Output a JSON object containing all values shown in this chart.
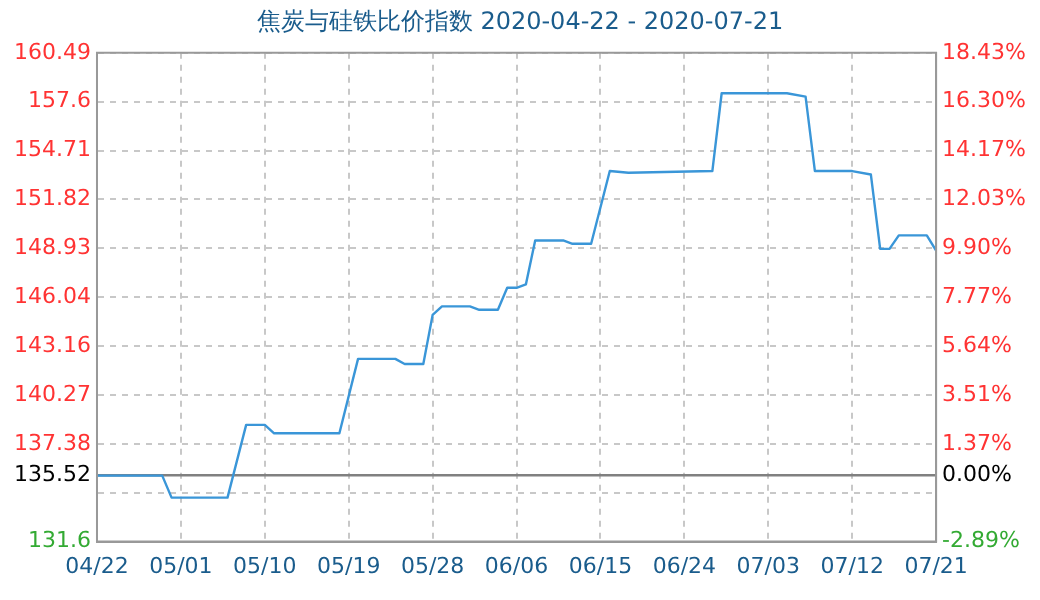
{
  "chart_data": {
    "type": "line",
    "title": "焦炭与硅铁比价指数 2020-04-22 - 2020-07-21",
    "x": [
      "2020-04-22",
      "2020-04-29",
      "2020-04-30",
      "2020-05-06",
      "2020-05-08",
      "2020-05-10",
      "2020-05-11",
      "2020-05-18",
      "2020-05-20",
      "2020-05-24",
      "2020-05-25",
      "2020-05-27",
      "2020-05-28",
      "2020-05-29",
      "2020-06-01",
      "2020-06-02",
      "2020-06-04",
      "2020-06-05",
      "2020-06-06",
      "2020-06-07",
      "2020-06-08",
      "2020-06-11",
      "2020-06-12",
      "2020-06-14",
      "2020-06-16",
      "2020-06-18",
      "2020-06-27",
      "2020-06-28",
      "2020-07-05",
      "2020-07-07",
      "2020-07-08",
      "2020-07-12",
      "2020-07-14",
      "2020-07-15",
      "2020-07-16",
      "2020-07-17",
      "2020-07-20",
      "2020-07-21"
    ],
    "series": [
      {
        "color": "#3a96d8",
        "values": [
          135.5,
          135.5,
          134.2,
          134.2,
          138.5,
          138.5,
          138.0,
          138.0,
          142.4,
          142.4,
          142.1,
          142.1,
          145.0,
          145.5,
          145.5,
          145.3,
          145.3,
          146.6,
          146.6,
          146.8,
          149.4,
          149.4,
          149.2,
          149.2,
          153.5,
          153.4,
          153.5,
          158.1,
          158.1,
          157.9,
          153.5,
          153.5,
          153.3,
          148.9,
          148.9,
          149.7,
          149.7,
          148.8
        ]
      }
    ],
    "xlim": [
      "2020-04-22",
      "2020-07-21"
    ],
    "xticks": [
      {
        "value": "2020-04-22",
        "label": "04/22"
      },
      {
        "value": "2020-05-01",
        "label": "05/01"
      },
      {
        "value": "2020-05-10",
        "label": "05/10"
      },
      {
        "value": "2020-05-19",
        "label": "05/19"
      },
      {
        "value": "2020-05-28",
        "label": "05/28"
      },
      {
        "value": "2020-06-06",
        "label": "06/06"
      },
      {
        "value": "2020-06-15",
        "label": "06/15"
      },
      {
        "value": "2020-06-24",
        "label": "06/24"
      },
      {
        "value": "2020-07-03",
        "label": "07/03"
      },
      {
        "value": "2020-07-12",
        "label": "07/12"
      },
      {
        "value": "2020-07-21",
        "label": "07/21"
      }
    ],
    "ylim": [
      131.6,
      160.49
    ],
    "yticks": [
      131.6,
      {
        "value": 134.49,
        "label": null
      },
      135.52,
      137.38,
      140.27,
      143.16,
      146.04,
      148.93,
      151.82,
      154.71,
      157.6,
      160.49
    ],
    "y2lim": [
      -2.89,
      18.43
    ],
    "y2ticks": [
      {
        "value": -2.89,
        "label": "-2.89%"
      },
      {
        "value": 0,
        "label": "0.00%"
      },
      {
        "value": 1.37,
        "label": "1.37%"
      },
      {
        "value": 3.51,
        "label": "3.51%"
      },
      {
        "value": 5.64,
        "label": "5.64%"
      },
      {
        "value": 7.77,
        "label": "7.77%"
      },
      {
        "value": 9.9,
        "label": "9.90%"
      },
      {
        "value": 12.03,
        "label": "12.03%"
      },
      {
        "value": 14.17,
        "label": "14.17%"
      },
      {
        "value": 16.3,
        "label": "16.30%"
      },
      {
        "value": 18.43,
        "label": "18.43%"
      }
    ],
    "ref_lines": [
      {
        "axis": "y",
        "value": 135.52,
        "color": "#808080"
      }
    ],
    "grid": true,
    "legend": false,
    "marker": "none",
    "line_style": "solid"
  }
}
